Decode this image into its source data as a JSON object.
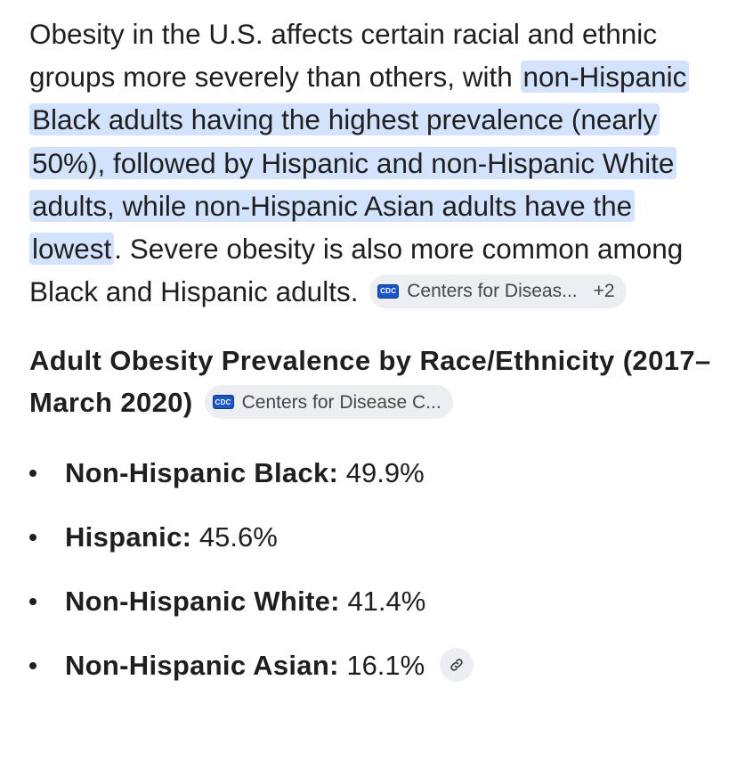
{
  "intro": {
    "text_before": "Obesity in the U.S. affects certain racial and ethnic groups more severely than others, with ",
    "highlighted": "non-Hispanic Black adults having the highest prevalence (nearly 50%), followed by Hispanic and non-Hispanic White adults, while non-Hispanic Asian adults have the lowest",
    "text_after": ". Severe obesity is also more common among Black and Hispanic adults.",
    "source_chip": {
      "logo": "CDC",
      "label": "Centers for Diseas...",
      "more": "+2"
    }
  },
  "section": {
    "title": "Adult Obesity Prevalence by Race/Ethnicity (2017–March 2020)",
    "source_chip": {
      "logo": "CDC",
      "label": "Centers for Disease C..."
    }
  },
  "list": [
    {
      "label": "Non-Hispanic Black:",
      "value": "49.9%"
    },
    {
      "label": "Hispanic:",
      "value": "45.6%"
    },
    {
      "label": "Non-Hispanic White:",
      "value": "41.4%"
    },
    {
      "label": "Non-Hispanic Asian:",
      "value": "16.1%"
    }
  ],
  "icons": {
    "source_logo": "cdc-logo-icon",
    "link": "link-icon"
  },
  "colors": {
    "highlight": "#d3e3fd",
    "chip_bg": "#eceef2",
    "text": "#1f1f1f",
    "chip_text": "#444746",
    "cdc_blue": "#1a56c4"
  }
}
